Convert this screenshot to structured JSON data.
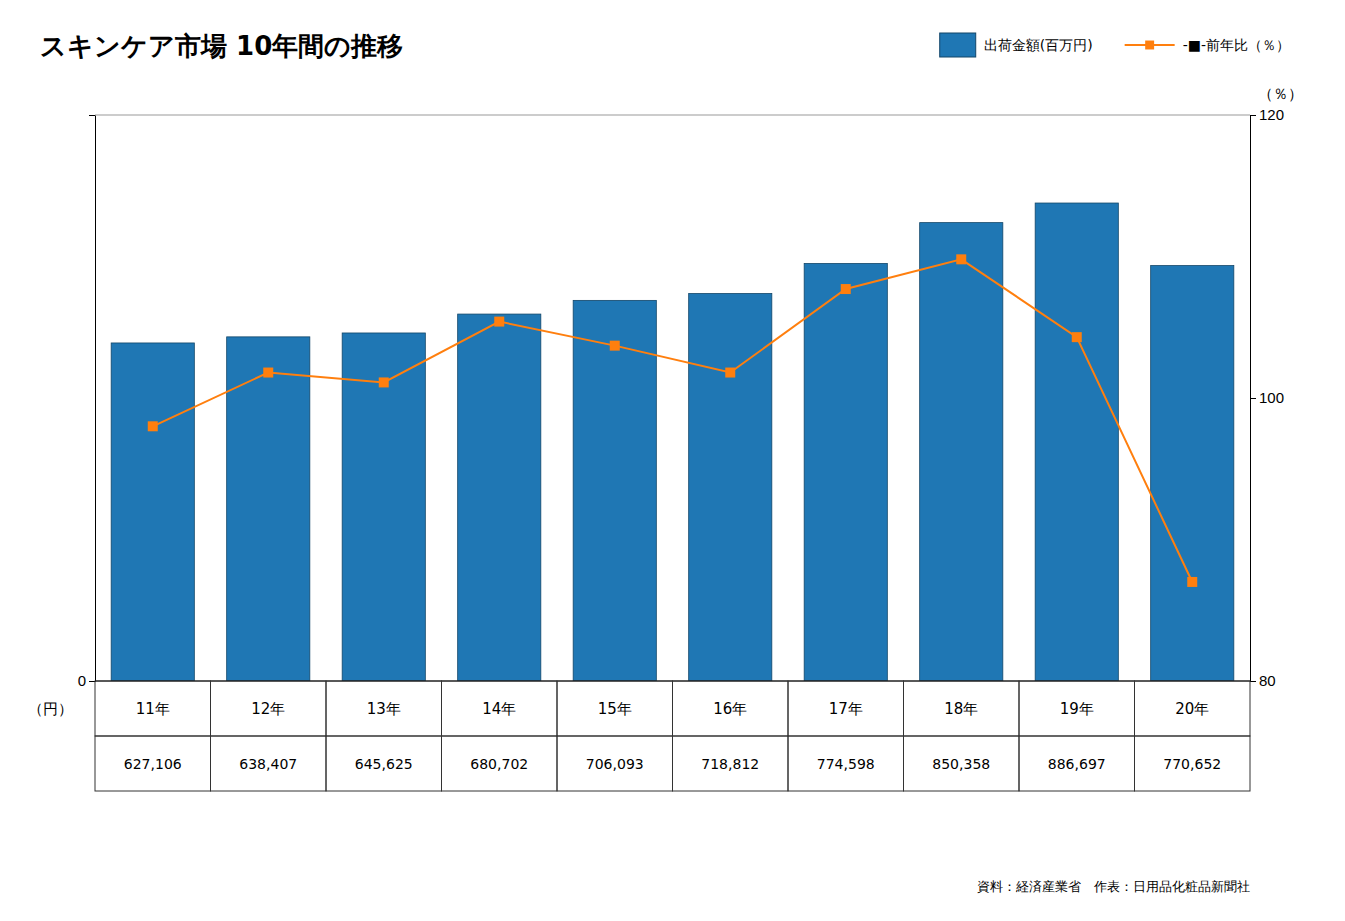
{
  "chart_data": {
    "type": "bar",
    "title": "スキンケア市場 10年間の推移",
    "categories": [
      "11年",
      "12年",
      "13年",
      "14年",
      "15年",
      "16年",
      "17年",
      "18年",
      "19年",
      "20年"
    ],
    "series": [
      {
        "name": "出荷金額(百万円)",
        "type": "bar",
        "color": "#1f77b4",
        "values": [
          627106,
          638407,
          645625,
          680702,
          706093,
          718812,
          774598,
          850358,
          886697,
          770652
        ],
        "value_labels": [
          "627,106",
          "638,407",
          "645,625",
          "680,702",
          "706,093",
          "718,812",
          "774,598",
          "850,358",
          "886,697",
          "770,652"
        ]
      },
      {
        "name": "-■-前年比（％）",
        "type": "line",
        "axis": "y2",
        "color": "#ff7f0e",
        "marker": "square",
        "values": [
          98.0,
          101.8,
          101.1,
          105.4,
          103.7,
          101.8,
          107.7,
          109.8,
          104.3,
          87.0
        ]
      }
    ],
    "ylabel": "（円）",
    "y2label": "（％）",
    "ylim": [
      0,
      1050000
    ],
    "yticks": [
      0
    ],
    "y2lim": [
      80,
      120
    ],
    "y2ticks": [
      80,
      100,
      120
    ],
    "data_labels": true,
    "grid": false,
    "legend": "top-right",
    "annotations": [
      "資料：経済産業省　作表：日用品化粧品新聞社"
    ]
  }
}
